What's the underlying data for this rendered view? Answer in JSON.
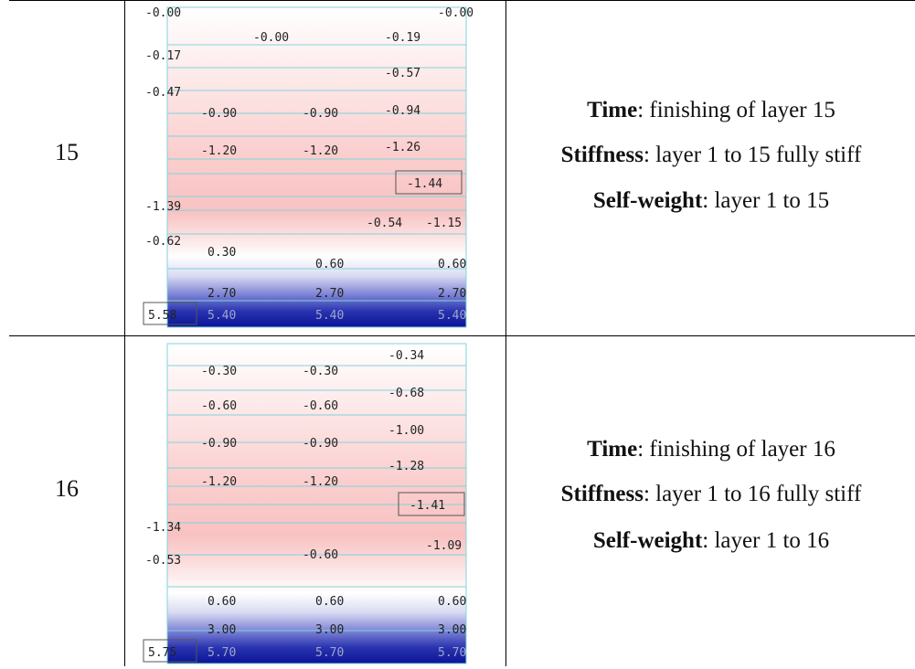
{
  "rows": [
    {
      "layer": "15",
      "time_label": "Time",
      "time_text": ": finishing of layer 15",
      "stiff_label": "Stiffness",
      "stiff_text": ": layer 1 to 15 fully stiff",
      "sw_label": "Self-weight",
      "sw_text": ": layer 1 to 15",
      "values": [
        "-0.00",
        "-0.00",
        "-0.00",
        "-0.19",
        "-0.17",
        "-0.57",
        "-0.47",
        "-0.90",
        "-0.90",
        "-0.94",
        "-1.20",
        "-1.20",
        "-1.26",
        "-1.44",
        "-1.39",
        "-0.54",
        "-1.15",
        "-0.62",
        "0.30",
        "0.60",
        "0.60",
        "2.70",
        "2.70",
        "2.70",
        "5.58",
        "5.40",
        "5.40",
        "5.40"
      ]
    },
    {
      "layer": "16",
      "time_label": "Time",
      "time_text": ": finishing of layer 16",
      "stiff_label": "Stiffness",
      "stiff_text": ": layer 1 to 16 fully stiff",
      "sw_label": "Self-weight",
      "sw_text": ": layer 1 to 16",
      "values": [
        "-0.34",
        "-0.30",
        "-0.30",
        "-0.68",
        "-0.60",
        "-0.60",
        "-1.00",
        "-0.90",
        "-0.90",
        "-1.28",
        "-1.20",
        "-1.20",
        "-1.41",
        "-1.34",
        "-1.09",
        "-0.53",
        "-0.60",
        "0.60",
        "0.60",
        "0.60",
        "3.00",
        "3.00",
        "3.00",
        "5.75",
        "5.70",
        "5.70",
        "5.70"
      ]
    }
  ]
}
